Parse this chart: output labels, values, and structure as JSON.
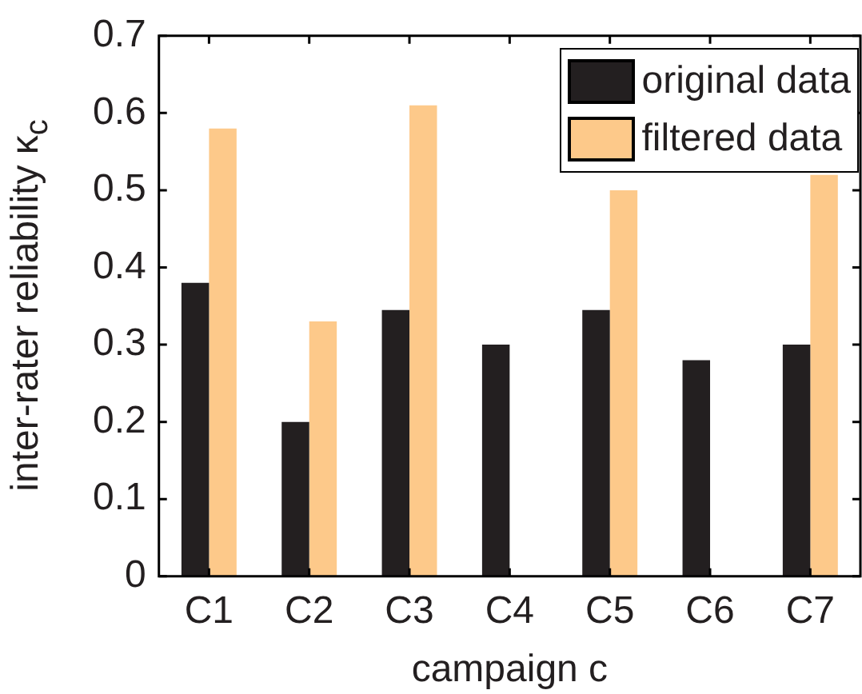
{
  "chart_data": {
    "type": "bar",
    "xlabel": "campaign c",
    "ylabel": "inter-rater reliability κ$_{c}$",
    "categories": [
      "C1",
      "C2",
      "C3",
      "C4",
      "C5",
      "C6",
      "C7"
    ],
    "series": [
      {
        "name": "original data",
        "color": "#231f20",
        "values": [
          0.38,
          0.2,
          0.345,
          0.3,
          0.345,
          0.28,
          0.3
        ]
      },
      {
        "name": "filtered data",
        "color": "#fdc98a",
        "values": [
          0.58,
          0.33,
          0.61,
          null,
          0.5,
          null,
          0.52
        ]
      }
    ],
    "ylim": [
      0,
      0.7
    ],
    "yticks": [
      0,
      0.1,
      0.2,
      0.3,
      0.4,
      0.5,
      0.6,
      0.7
    ],
    "grid": false,
    "legend": "top right"
  }
}
